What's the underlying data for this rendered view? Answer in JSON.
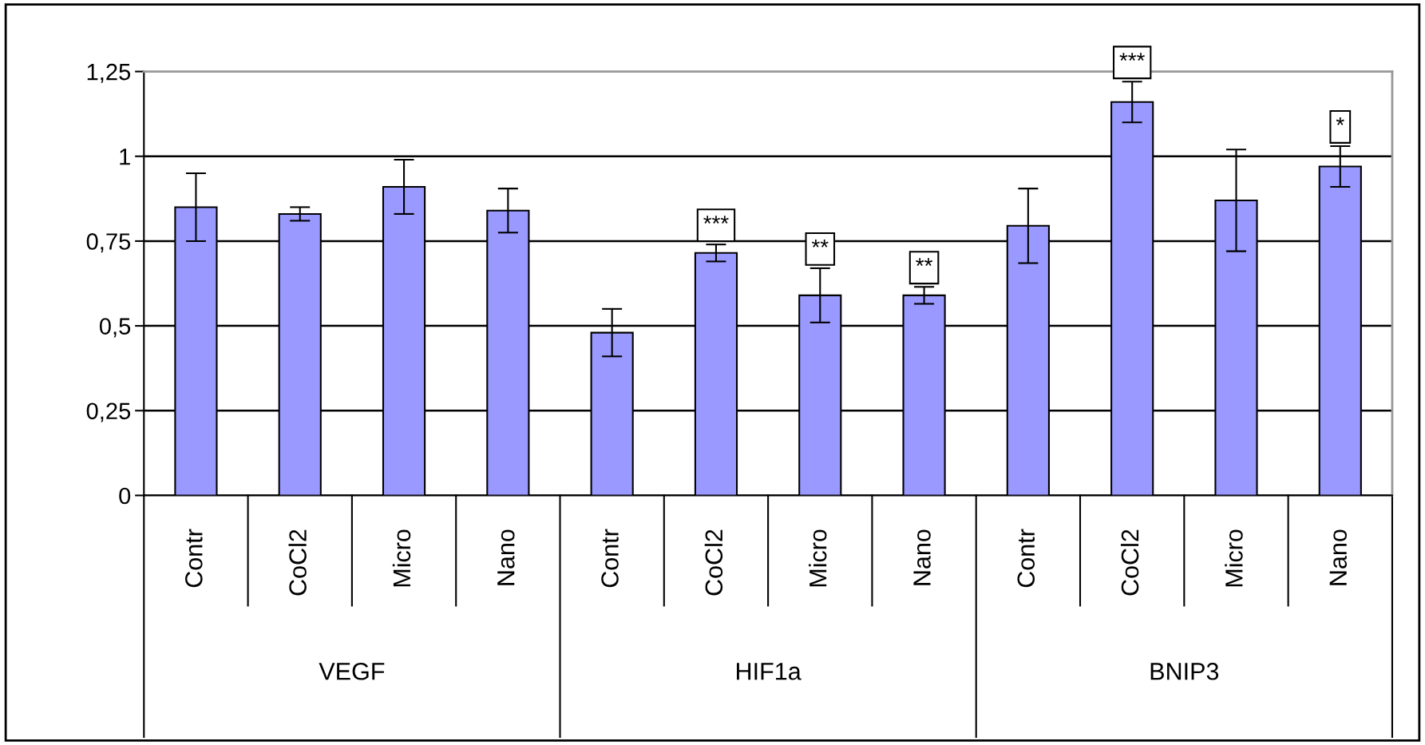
{
  "chart_data": {
    "type": "bar",
    "categories": [
      "Contr",
      "CoCl2",
      "Micro",
      "Nano",
      "Contr",
      "CoCl2",
      "Micro",
      "Nano",
      "Contr",
      "CoCl2",
      "Micro",
      "Nano"
    ],
    "values": [
      0.85,
      0.83,
      0.91,
      0.84,
      0.48,
      0.715,
      0.59,
      0.59,
      0.795,
      1.16,
      0.87,
      0.97
    ],
    "errors": [
      0.1,
      0.02,
      0.08,
      0.065,
      0.07,
      0.025,
      0.08,
      0.025,
      0.11,
      0.06,
      0.15,
      0.06
    ],
    "value_labels": [
      null,
      null,
      null,
      null,
      null,
      "***",
      "**",
      "**",
      null,
      "***",
      null,
      "*"
    ],
    "color": "#9999ff",
    "ylim": [
      0,
      1.25
    ],
    "yticks": [
      {
        "value": 0,
        "label": "0"
      },
      {
        "value": 0.25,
        "label": "0,25"
      },
      {
        "value": 0.5,
        "label": "0,5"
      },
      {
        "value": 0.75,
        "label": "0,75"
      },
      {
        "value": 1,
        "label": "1"
      },
      {
        "value": 1.25,
        "label": "1,25"
      }
    ],
    "grid": "y",
    "annotations": [
      "VEGF",
      "HIF1a",
      "BNIP3"
    ]
  }
}
